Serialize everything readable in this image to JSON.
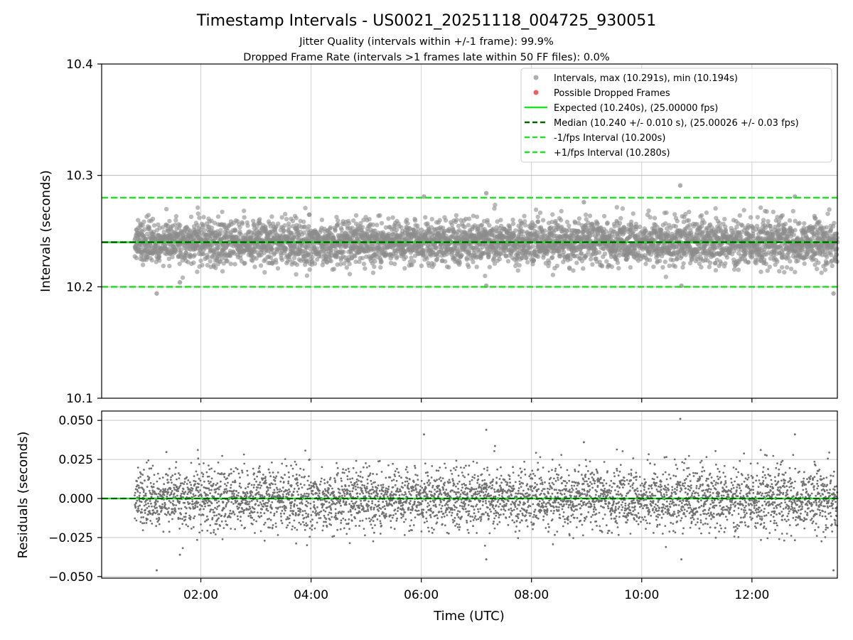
{
  "chart_data": [
    {
      "type": "scatter",
      "panel": "intervals",
      "title": "Timestamp Intervals - US0021_20251118_004725_930051",
      "subtitle_lines": [
        "Jitter Quality (intervals within +/-1 frame): 99.9%",
        "Dropped Frame Rate (intervals >1 frames late within 50 FF files): 0.0%"
      ],
      "xlabel": "",
      "ylabel": "Intervals (seconds)",
      "xlim": [
        0.2,
        13.55
      ],
      "ylim": [
        10.1,
        10.4
      ],
      "yticks": [
        10.1,
        10.2,
        10.3,
        10.4
      ],
      "ytick_labels": [
        "10.1",
        "10.2",
        "10.3",
        "10.4"
      ],
      "grid": true,
      "legend_position": "top-right",
      "series": [
        {
          "name": "Intervals, max (10.291s), min (10.194s)",
          "kind": "scatter",
          "color": "#8c8c8c",
          "x_start": 0.8,
          "x_end": 13.55,
          "count": 4480,
          "center": 10.24,
          "spread": 0.01,
          "max": 10.291,
          "min": 10.194,
          "outliers": [
            {
              "x": 1.2,
              "y": 10.194
            },
            {
              "x": 10.7,
              "y": 10.291
            },
            {
              "x": 13.48,
              "y": 10.194
            },
            {
              "x": 7.18,
              "y": 10.284
            },
            {
              "x": 6.05,
              "y": 10.281
            },
            {
              "x": 12.78,
              "y": 10.281
            },
            {
              "x": 7.18,
              "y": 10.201
            },
            {
              "x": 1.62,
              "y": 10.204
            },
            {
              "x": 8.95,
              "y": 10.276
            },
            {
              "x": 10.72,
              "y": 10.201
            }
          ]
        },
        {
          "name": "Possible Dropped Frames",
          "kind": "scatter",
          "color": "#f06060",
          "values": []
        }
      ],
      "lines": [
        {
          "name": "Expected (10.240s), (25.00000 fps)",
          "y": 10.24,
          "color": "#22e022",
          "style": "solid"
        },
        {
          "name": "Median (10.240 +/- 0.010 s), (25.00026 +/- 0.03 fps)",
          "y": 10.24,
          "color": "#006400",
          "style": "dashed"
        },
        {
          "name": "-1/fps Interval (10.200s)",
          "y": 10.2,
          "color": "#22e022",
          "style": "dashed"
        },
        {
          "name": "+1/fps Interval (10.280s)",
          "y": 10.28,
          "color": "#22e022",
          "style": "dashed"
        }
      ]
    },
    {
      "type": "scatter",
      "panel": "residuals",
      "xlabel": "Time (UTC)",
      "ylabel": "Residuals (seconds)",
      "xlim": [
        0.2,
        13.55
      ],
      "ylim": [
        -0.051,
        0.056
      ],
      "yticks": [
        -0.05,
        -0.025,
        0.0,
        0.025,
        0.05
      ],
      "ytick_labels": [
        "−0.050",
        "−0.025",
        "0.000",
        "0.025",
        "0.050"
      ],
      "xticks": [
        2,
        4,
        6,
        8,
        10,
        12
      ],
      "xtick_labels": [
        "02:00",
        "04:00",
        "06:00",
        "08:00",
        "10:00",
        "12:00"
      ],
      "grid": true,
      "series": [
        {
          "name": "Residuals",
          "kind": "scatter",
          "color": "#707070",
          "x_start": 0.8,
          "x_end": 13.55,
          "count": 4480,
          "center": 0.0,
          "spread": 0.01,
          "max": 0.051,
          "min": -0.046
        }
      ],
      "lines": [
        {
          "name": "Zero",
          "y": 0.0,
          "color": "#22e022",
          "style": "solid"
        },
        {
          "name": "Median",
          "y": 0.0,
          "color": "#006400",
          "style": "dashed"
        }
      ]
    }
  ]
}
